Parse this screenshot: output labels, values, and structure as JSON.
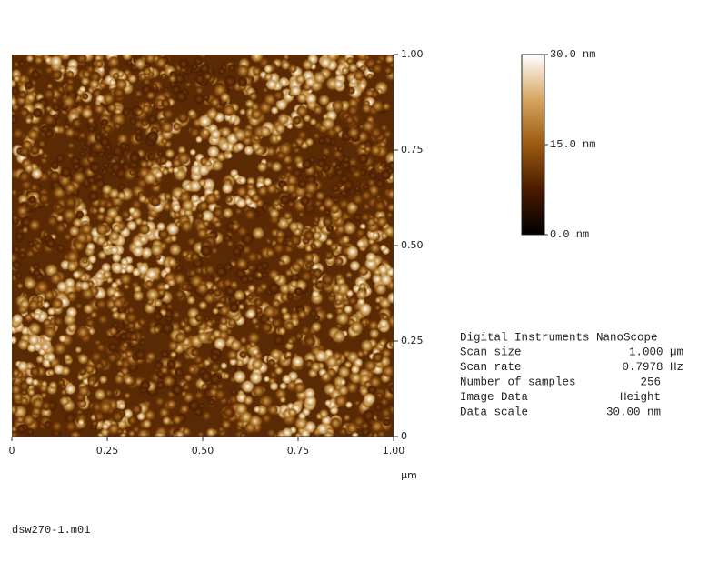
{
  "image": {
    "x_ticks": [
      "0",
      "0.25",
      "0.50",
      "0.75",
      "1.00"
    ],
    "y_ticks": [
      "0",
      "0.25",
      "0.50",
      "0.75",
      "1.00"
    ],
    "x_unit": "µm"
  },
  "colorbar": {
    "labels": [
      "30.0 nm",
      "15.0 nm",
      "0.0 nm"
    ]
  },
  "info": {
    "title": "Digital Instruments NanoScope",
    "rows": [
      [
        "Scan size",
        "1.000 µm"
      ],
      [
        "Scan rate",
        "0.7978 Hz"
      ],
      [
        "Number of samples",
        "256"
      ],
      [
        "Image Data",
        "Height"
      ],
      [
        "Data scale",
        "30.00 nm"
      ]
    ]
  },
  "filename": "dsw270-1.m01"
}
